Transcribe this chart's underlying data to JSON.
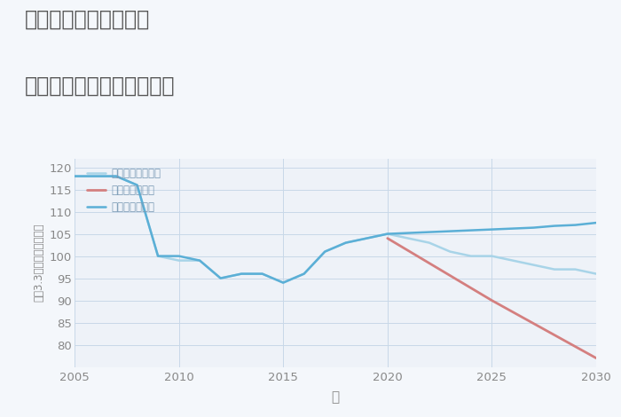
{
  "title_line1": "奈良県橿原市今井町の",
  "title_line2": "中古マンションの価格推移",
  "xlabel": "年",
  "ylabel": "坪（3.3㎡）単価（万円）",
  "xlim": [
    2005,
    2030
  ],
  "ylim": [
    75,
    122
  ],
  "yticks": [
    80,
    85,
    90,
    95,
    100,
    105,
    110,
    115,
    120
  ],
  "xticks": [
    2005,
    2010,
    2015,
    2020,
    2025,
    2030
  ],
  "good_scenario": {
    "x": [
      2005,
      2006,
      2007,
      2008,
      2009,
      2010,
      2011,
      2012,
      2013,
      2014,
      2015,
      2016,
      2017,
      2018,
      2019,
      2020,
      2021,
      2022,
      2023,
      2024,
      2025,
      2026,
      2027,
      2028,
      2029,
      2030
    ],
    "y": [
      118,
      118,
      118,
      116,
      100,
      100,
      99,
      95,
      96,
      96,
      94,
      96,
      101,
      103,
      104,
      105,
      105.2,
      105.4,
      105.6,
      105.8,
      106,
      106.2,
      106.4,
      106.8,
      107,
      107.5
    ],
    "color": "#5bafd6",
    "label": "グッドシナリオ",
    "linewidth": 1.8
  },
  "bad_scenario": {
    "x": [
      2020,
      2025,
      2030
    ],
    "y": [
      104,
      90,
      77
    ],
    "color": "#d47f7f",
    "label": "バッドシナリオ",
    "linewidth": 2.0,
    "linestyle": "-"
  },
  "normal_scenario": {
    "x": [
      2005,
      2006,
      2007,
      2008,
      2009,
      2010,
      2011,
      2012,
      2013,
      2014,
      2015,
      2016,
      2017,
      2018,
      2019,
      2020,
      2021,
      2022,
      2023,
      2024,
      2025,
      2026,
      2027,
      2028,
      2029,
      2030
    ],
    "y": [
      118,
      118,
      118,
      116,
      100,
      99,
      99,
      95,
      96,
      96,
      94,
      96,
      101,
      103,
      104,
      105,
      104,
      103,
      101,
      100,
      100,
      99,
      98,
      97,
      97,
      96
    ],
    "color": "#a8d4e8",
    "label": "ノーマルシナリオ",
    "linewidth": 1.8
  },
  "background_color": "#f4f7fb",
  "plot_bg_color": "#eef2f8",
  "grid_color": "#c8d8e8",
  "title_color": "#555555",
  "axis_label_color": "#888888",
  "tick_color": "#888888",
  "legend_label_color": "#7a9ab5"
}
